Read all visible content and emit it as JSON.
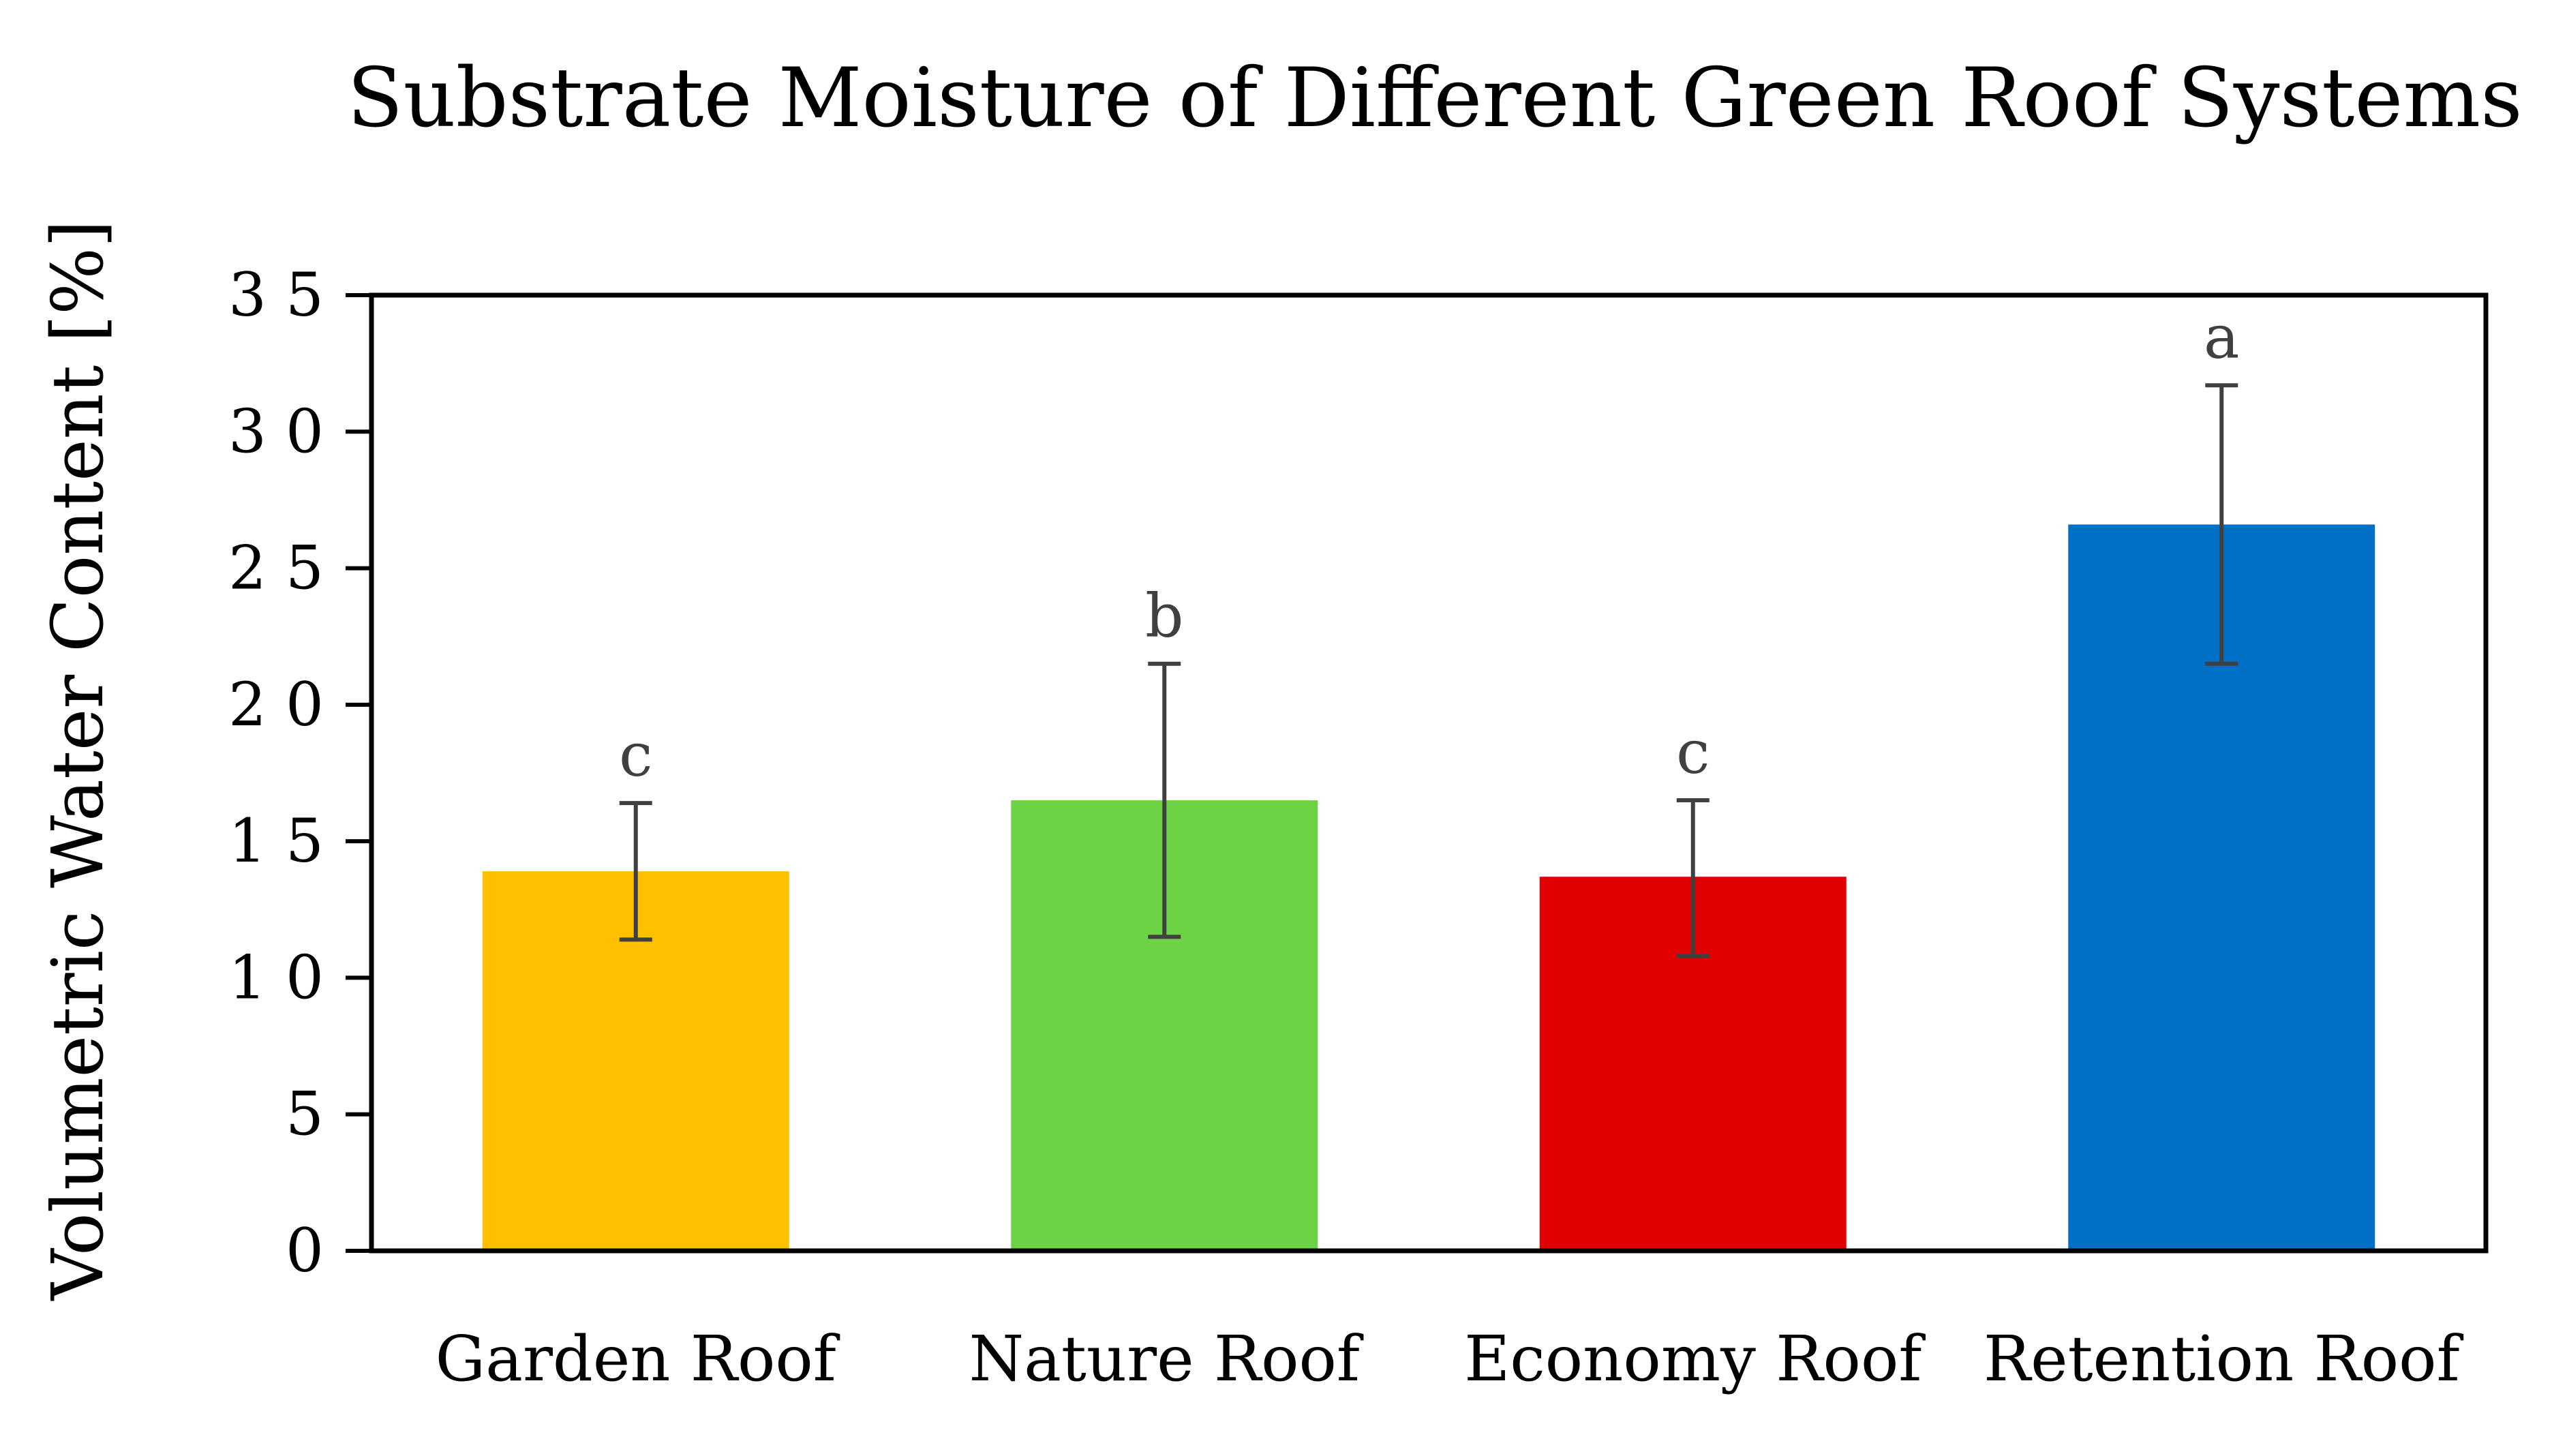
{
  "chart_data": {
    "type": "bar",
    "title": "Substrate Moisture of Different Green Roof Systems",
    "xlabel": "",
    "ylabel": "Volumetric Water Content [%]",
    "ylim": [
      0,
      35
    ],
    "yticks": [
      0,
      5,
      10,
      15,
      20,
      25,
      30,
      35
    ],
    "ytick_labels": [
      "0",
      "5",
      "1 0",
      "1 5",
      "2 0",
      "2 5",
      "3 0",
      "3 5"
    ],
    "grid": false,
    "categories": [
      "Garden Roof",
      "Nature Roof",
      "Economy Roof",
      "Retention Roof"
    ],
    "values": [
      13.9,
      16.5,
      13.7,
      26.6
    ],
    "error_high": [
      16.4,
      21.5,
      16.5,
      31.7
    ],
    "error_low": [
      11.4,
      11.5,
      10.8,
      21.5
    ],
    "significance_letters": [
      "c",
      "b",
      "c",
      "a"
    ],
    "colors": [
      "#FFC000",
      "#6CD444",
      "#E00000",
      "#0070C6"
    ],
    "error_bar_color": "#404040",
    "axis_color": "#000000"
  }
}
